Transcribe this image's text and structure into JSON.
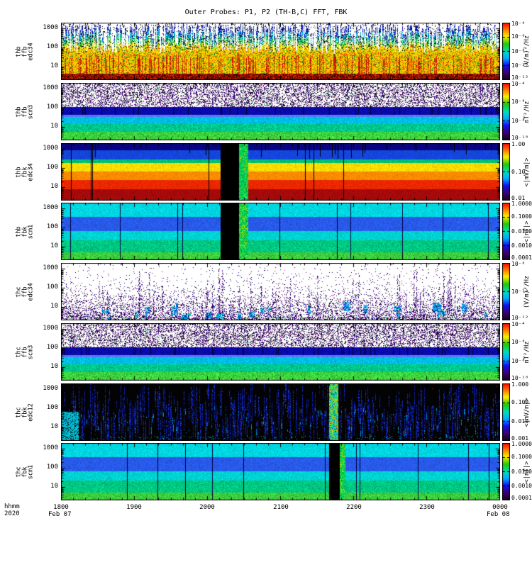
{
  "chart_data": {
    "type": "heatmap",
    "title": "Outer Probes: P1, P2 (TH-B,C) FFT, FBK",
    "x_label": "hhmm",
    "x_year": "2020",
    "x_date_start": "Feb 07",
    "x_date_end": "Feb 08",
    "x_ticks": [
      "1800",
      "1900",
      "2000",
      "2100",
      "2200",
      "2300",
      "0000"
    ],
    "y_scale": "log",
    "colorbar_palette": {
      "stops": [
        {
          "at": 0.0,
          "color": "#ff0000"
        },
        {
          "at": 0.12,
          "color": "#ff7700"
        },
        {
          "at": 0.24,
          "color": "#ffee00"
        },
        {
          "at": 0.37,
          "color": "#22cc00"
        },
        {
          "at": 0.5,
          "color": "#00ddbb"
        },
        {
          "at": 0.62,
          "color": "#00aaff"
        },
        {
          "at": 0.74,
          "color": "#1111ee"
        },
        {
          "at": 0.87,
          "color": "#3a006e"
        },
        {
          "at": 1.0,
          "color": "#14001e"
        }
      ]
    },
    "panels": [
      {
        "id": "thb-ffb-edc34",
        "label_lines": [
          "thb",
          "ffb",
          "edc34"
        ],
        "y_ticks": [
          "1000",
          "100",
          "10"
        ],
        "colorbar": {
          "ticks": [
            "10⁻⁴",
            "10⁻⁶",
            "10⁻⁸",
            "10⁻¹⁰",
            "10⁻¹²"
          ],
          "unit": "(V/m)²/Hz"
        },
        "texture": "ffb_e_busy",
        "seed": 11
      },
      {
        "id": "thb-ffb-scm3",
        "label_lines": [
          "thb",
          "ffb",
          "scm3"
        ],
        "y_ticks": [
          "1000",
          "100",
          "10"
        ],
        "colorbar": {
          "ticks": [
            "10⁻⁴",
            "10⁻⁶",
            "10⁻⁸",
            "10⁻¹⁰"
          ],
          "unit": "nT²/Hz"
        },
        "texture": "ffb_b",
        "seed": 22
      },
      {
        "id": "thb-fbk-edc34",
        "label_lines": [
          "thb",
          "fbk",
          "edc34"
        ],
        "y_ticks": [
          "1000",
          "100",
          "10"
        ],
        "colorbar": {
          "ticks": [
            "1.00",
            "0.10",
            "0.01"
          ],
          "unit": "<|mV/m|>"
        },
        "texture": "fbk_e_bands",
        "seed": 33,
        "gap": {
          "from": 0.365,
          "to": 0.428
        }
      },
      {
        "id": "thb-fbk-scm1",
        "label_lines": [
          "thb",
          "fbk",
          "scm1"
        ],
        "y_ticks": [
          "1000",
          "100",
          "10"
        ],
        "colorbar": {
          "ticks": [
            "1.0000",
            "0.1000",
            "0.0100",
            "0.0010",
            "0.0001"
          ],
          "unit": "<|nT|>"
        },
        "texture": "fbk_b_bands",
        "seed": 44,
        "gap": {
          "from": 0.365,
          "to": 0.428
        }
      },
      {
        "id": "thc-ffb-edc34",
        "label_lines": [
          "thc",
          "ffb",
          "edc34"
        ],
        "y_ticks": [
          "1000",
          "100",
          "10"
        ],
        "colorbar": {
          "ticks": [
            "10⁻⁸",
            "10⁻¹⁰",
            "10⁻¹²"
          ],
          "unit": "(V/m)²/Hz"
        },
        "texture": "ffb_e_sparse",
        "seed": 55
      },
      {
        "id": "thc-ffb-scm3",
        "label_lines": [
          "thc",
          "ffb",
          "scm3"
        ],
        "y_ticks": [
          "1000",
          "100",
          "10"
        ],
        "colorbar": {
          "ticks": [
            "10⁻⁴",
            "10⁻⁶",
            "10⁻⁸",
            "10⁻¹⁰"
          ],
          "unit": "nT²/Hz"
        },
        "texture": "ffb_b",
        "seed": 66
      },
      {
        "id": "thc-fbk-edc12",
        "label_lines": [
          "thc",
          "fbk",
          "edc12"
        ],
        "y_ticks": [
          "1000",
          "100",
          "10"
        ],
        "colorbar": {
          "ticks": [
            "1.000",
            "0.100",
            "0.010",
            "0.001"
          ],
          "unit": "<|mV/m|>"
        },
        "texture": "fbk_e_dark",
        "seed": 77,
        "gap": {
          "from": 0.612,
          "to": 0.632
        }
      },
      {
        "id": "thc-fbk-scm1",
        "label_lines": [
          "thc",
          "fbk",
          "scm1"
        ],
        "y_ticks": [
          "1000",
          "100",
          "10"
        ],
        "colorbar": {
          "ticks": [
            "1.0000",
            "0.1000",
            "0.0100",
            "0.0010",
            "0.0001"
          ],
          "unit": "<|nT|>"
        },
        "texture": "fbk_b_bands",
        "seed": 88,
        "gap": {
          "from": 0.612,
          "to": 0.648
        }
      }
    ]
  }
}
